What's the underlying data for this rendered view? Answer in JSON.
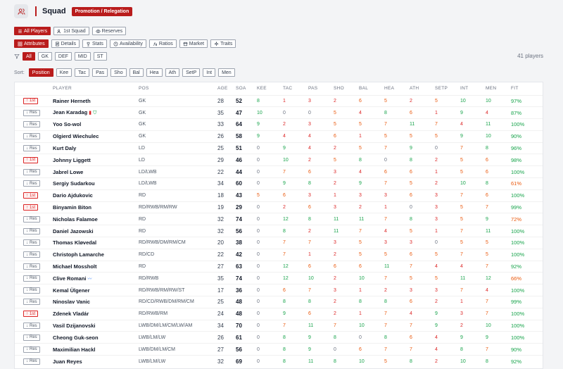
{
  "header": {
    "title": "Squad",
    "badge": "Promotion / Relegation",
    "icon": "users-icon"
  },
  "squad_tabs": [
    {
      "label": "All Players",
      "active": true,
      "icon": "list-icon"
    },
    {
      "label": "1st Squad",
      "active": false,
      "icon": "users-icon"
    },
    {
      "label": "Reserves",
      "active": false,
      "icon": "eye-icon"
    }
  ],
  "view_tabs": [
    {
      "label": "Attributes",
      "active": true,
      "icon": "grid-icon"
    },
    {
      "label": "Details",
      "active": false,
      "icon": "doc-icon"
    },
    {
      "label": "Stats",
      "active": false,
      "icon": "trophy-icon"
    },
    {
      "label": "Availability",
      "active": false,
      "icon": "clock-icon"
    },
    {
      "label": "Ratios",
      "active": false,
      "icon": "fx-icon"
    },
    {
      "label": "Market",
      "active": false,
      "icon": "market-icon"
    },
    {
      "label": "Traits",
      "active": false,
      "icon": "sparkle-icon"
    }
  ],
  "pos_filters": [
    {
      "label": "All",
      "active": true
    },
    {
      "label": "GK",
      "active": false
    },
    {
      "label": "DEF",
      "active": false
    },
    {
      "label": "MID",
      "active": false
    },
    {
      "label": "ST",
      "active": false
    }
  ],
  "players_count": "41 players",
  "sort": {
    "label": "Sort:",
    "options": [
      {
        "label": "Position",
        "active": true
      },
      {
        "label": "Kee",
        "active": false
      },
      {
        "label": "Tac",
        "active": false
      },
      {
        "label": "Pas",
        "active": false
      },
      {
        "label": "Sho",
        "active": false
      },
      {
        "label": "Bal",
        "active": false
      },
      {
        "label": "Hea",
        "active": false
      },
      {
        "label": "Ath",
        "active": false
      },
      {
        "label": "SetP",
        "active": false
      },
      {
        "label": "Int",
        "active": false
      },
      {
        "label": "Men",
        "active": false
      }
    ]
  },
  "columns": [
    "",
    "PLAYER",
    "POS",
    "AGE",
    "SOA",
    "KEE",
    "TAC",
    "PAS",
    "SHO",
    "BAL",
    "HEA",
    "ATH",
    "SETP",
    "INT",
    "MEN",
    "FIT"
  ],
  "colors": {
    "accent": "#b91c1c",
    "green": "#16a34a",
    "orange": "#ea580c",
    "red": "#dc2626"
  },
  "players": [
    {
      "squad": "1st",
      "name": "Rainer Herneth",
      "pos": "GK",
      "age": "28",
      "soa": "52",
      "attrs": [
        "8",
        "1",
        "3",
        "2",
        "6",
        "5",
        "2",
        "5",
        "10",
        "10"
      ],
      "fit": "97%"
    },
    {
      "squad": "Res",
      "name": "Jean Karadag",
      "pos": "GK",
      "age": "35",
      "soa": "47",
      "attrs": [
        "10",
        "0",
        "0",
        "5",
        "4",
        "8",
        "6",
        "1",
        "9",
        "4"
      ],
      "fit": "87%",
      "flags": [
        "card",
        "shirt"
      ]
    },
    {
      "squad": "Res",
      "name": "Yoo So-wol",
      "pos": "GK",
      "age": "33",
      "soa": "64",
      "attrs": [
        "9",
        "2",
        "3",
        "5",
        "5",
        "7",
        "11",
        "7",
        "4",
        "11"
      ],
      "fit": "100%"
    },
    {
      "squad": "Res",
      "name": "Olgierd Wiechulec",
      "pos": "GK",
      "age": "26",
      "soa": "58",
      "attrs": [
        "9",
        "4",
        "4",
        "6",
        "1",
        "5",
        "5",
        "5",
        "9",
        "10"
      ],
      "fit": "90%"
    },
    {
      "squad": "Res",
      "name": "Kurt Daly",
      "pos": "LD",
      "age": "25",
      "soa": "51",
      "attrs": [
        "0",
        "9",
        "4",
        "2",
        "5",
        "7",
        "9",
        "0",
        "7",
        "8"
      ],
      "fit": "96%"
    },
    {
      "squad": "1st",
      "name": "Johnny Liggett",
      "pos": "LD",
      "age": "29",
      "soa": "46",
      "attrs": [
        "0",
        "10",
        "2",
        "5",
        "8",
        "0",
        "8",
        "2",
        "5",
        "6"
      ],
      "fit": "98%"
    },
    {
      "squad": "Res",
      "name": "Jabrel Lowe",
      "pos": "LD/LWB",
      "age": "22",
      "soa": "44",
      "attrs": [
        "0",
        "7",
        "6",
        "3",
        "4",
        "6",
        "6",
        "1",
        "5",
        "6"
      ],
      "fit": "100%"
    },
    {
      "squad": "Res",
      "name": "Sergiy Sudarkou",
      "pos": "LD/LWB",
      "age": "34",
      "soa": "60",
      "attrs": [
        "0",
        "9",
        "8",
        "2",
        "9",
        "7",
        "5",
        "2",
        "10",
        "8"
      ],
      "fit": "61%"
    },
    {
      "squad": "1st",
      "name": "Dario Ajdukovic",
      "pos": "RD",
      "age": "18",
      "soa": "43",
      "attrs": [
        "5",
        "6",
        "3",
        "1",
        "3",
        "3",
        "6",
        "3",
        "7",
        "6"
      ],
      "fit": "100%"
    },
    {
      "squad": "1st",
      "name": "Binyamin Biton",
      "pos": "RD/RWB/RM/RW",
      "age": "19",
      "soa": "29",
      "attrs": [
        "0",
        "2",
        "6",
        "3",
        "2",
        "1",
        "0",
        "3",
        "5",
        "7"
      ],
      "fit": "99%"
    },
    {
      "squad": "Res",
      "name": "Nicholas Falamoe",
      "pos": "RD",
      "age": "32",
      "soa": "74",
      "attrs": [
        "0",
        "12",
        "8",
        "11",
        "11",
        "7",
        "8",
        "3",
        "5",
        "9"
      ],
      "fit": "72%"
    },
    {
      "squad": "Res",
      "name": "Daniel Jazowski",
      "pos": "RD",
      "age": "32",
      "soa": "56",
      "attrs": [
        "0",
        "8",
        "2",
        "11",
        "7",
        "4",
        "5",
        "1",
        "7",
        "11"
      ],
      "fit": "100%"
    },
    {
      "squad": "Res",
      "name": "Thomas Kløvedal",
      "pos": "RD/RWB/DM/RM/CM",
      "age": "20",
      "soa": "38",
      "attrs": [
        "0",
        "7",
        "7",
        "3",
        "5",
        "3",
        "3",
        "0",
        "5",
        "5"
      ],
      "fit": "100%"
    },
    {
      "squad": "Res",
      "name": "Christoph Lamarche",
      "pos": "RD/CD",
      "age": "22",
      "soa": "42",
      "attrs": [
        "0",
        "7",
        "1",
        "2",
        "5",
        "5",
        "6",
        "5",
        "7",
        "5"
      ],
      "fit": "100%"
    },
    {
      "squad": "Res",
      "name": "Michael Mossholt",
      "pos": "RD",
      "age": "27",
      "soa": "63",
      "attrs": [
        "0",
        "12",
        "6",
        "6",
        "6",
        "11",
        "7",
        "4",
        "4",
        "7"
      ],
      "fit": "92%"
    },
    {
      "squad": "Res",
      "name": "Clive Romani",
      "pos": "RD/RWB",
      "age": "35",
      "soa": "74",
      "attrs": [
        "0",
        "12",
        "10",
        "2",
        "10",
        "7",
        "5",
        "5",
        "11",
        "12"
      ],
      "fit": "66%",
      "flags": [
        "boot"
      ]
    },
    {
      "squad": "Res",
      "name": "Kemal Ülgener",
      "pos": "RD/RWB/RM/RW/ST",
      "age": "17",
      "soa": "36",
      "attrs": [
        "0",
        "6",
        "7",
        "3",
        "1",
        "2",
        "3",
        "3",
        "7",
        "4"
      ],
      "fit": "100%"
    },
    {
      "squad": "Res",
      "name": "Ninoslav Vanic",
      "pos": "RD/CD/RWB/DM/RM/CM",
      "age": "25",
      "soa": "48",
      "attrs": [
        "0",
        "8",
        "8",
        "2",
        "8",
        "8",
        "6",
        "2",
        "1",
        "7"
      ],
      "fit": "99%"
    },
    {
      "squad": "1st",
      "name": "Zdenek Vladár",
      "pos": "RD/RWB/RM",
      "age": "24",
      "soa": "48",
      "attrs": [
        "0",
        "9",
        "6",
        "2",
        "1",
        "7",
        "4",
        "9",
        "3",
        "7"
      ],
      "fit": "100%"
    },
    {
      "squad": "Res",
      "name": "Vasil Dzijanovski",
      "pos": "LWB/DM/LM/CM/LW/AM",
      "age": "34",
      "soa": "70",
      "attrs": [
        "0",
        "7",
        "11",
        "7",
        "10",
        "7",
        "7",
        "9",
        "2",
        "10"
      ],
      "fit": "100%"
    },
    {
      "squad": "Res",
      "name": "Cheong Guk-seon",
      "pos": "LWB/LM/LW",
      "age": "26",
      "soa": "61",
      "attrs": [
        "0",
        "8",
        "9",
        "8",
        "0",
        "8",
        "6",
        "4",
        "9",
        "9"
      ],
      "fit": "100%"
    },
    {
      "squad": "Res",
      "name": "Maximilian Hackl",
      "pos": "LWB/DM/LM/CM",
      "age": "27",
      "soa": "56",
      "attrs": [
        "0",
        "8",
        "9",
        "0",
        "6",
        "7",
        "7",
        "4",
        "8",
        "7"
      ],
      "fit": "90%"
    },
    {
      "squad": "Res",
      "name": "Juan Reyes",
      "pos": "LWB/LM/LW",
      "age": "32",
      "soa": "69",
      "attrs": [
        "0",
        "8",
        "11",
        "8",
        "10",
        "5",
        "8",
        "2",
        "10",
        "8"
      ],
      "fit": "92%"
    }
  ]
}
